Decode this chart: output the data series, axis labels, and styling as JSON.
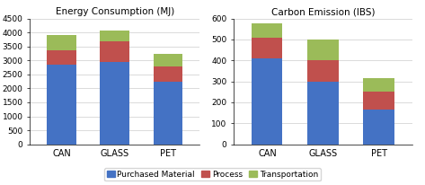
{
  "chart1_title": "Energy Consumption (MJ)",
  "chart2_title": "Carbon Emission (IBS)",
  "categories": [
    "CAN",
    "GLASS",
    "PET"
  ],
  "energy": {
    "purchased_material": [
      2850,
      2950,
      2250
    ],
    "process": [
      500,
      750,
      550
    ],
    "transportation": [
      550,
      380,
      450
    ]
  },
  "carbon": {
    "purchased_material": [
      410,
      300,
      165
    ],
    "process": [
      100,
      100,
      85
    ],
    "transportation": [
      65,
      100,
      65
    ]
  },
  "energy_ylim": [
    0,
    4500
  ],
  "carbon_ylim": [
    0,
    600
  ],
  "energy_yticks": [
    0,
    500,
    1000,
    1500,
    2000,
    2500,
    3000,
    3500,
    4000,
    4500
  ],
  "carbon_yticks": [
    0,
    100,
    200,
    300,
    400,
    500,
    600
  ],
  "color_purchased": "#4472C4",
  "color_process": "#C0504D",
  "color_transportation": "#9BBB59",
  "legend_labels": [
    "Purchased Material",
    "Process",
    "Transportation"
  ],
  "bar_width": 0.55,
  "figsize": [
    4.73,
    2.06
  ],
  "dpi": 100
}
